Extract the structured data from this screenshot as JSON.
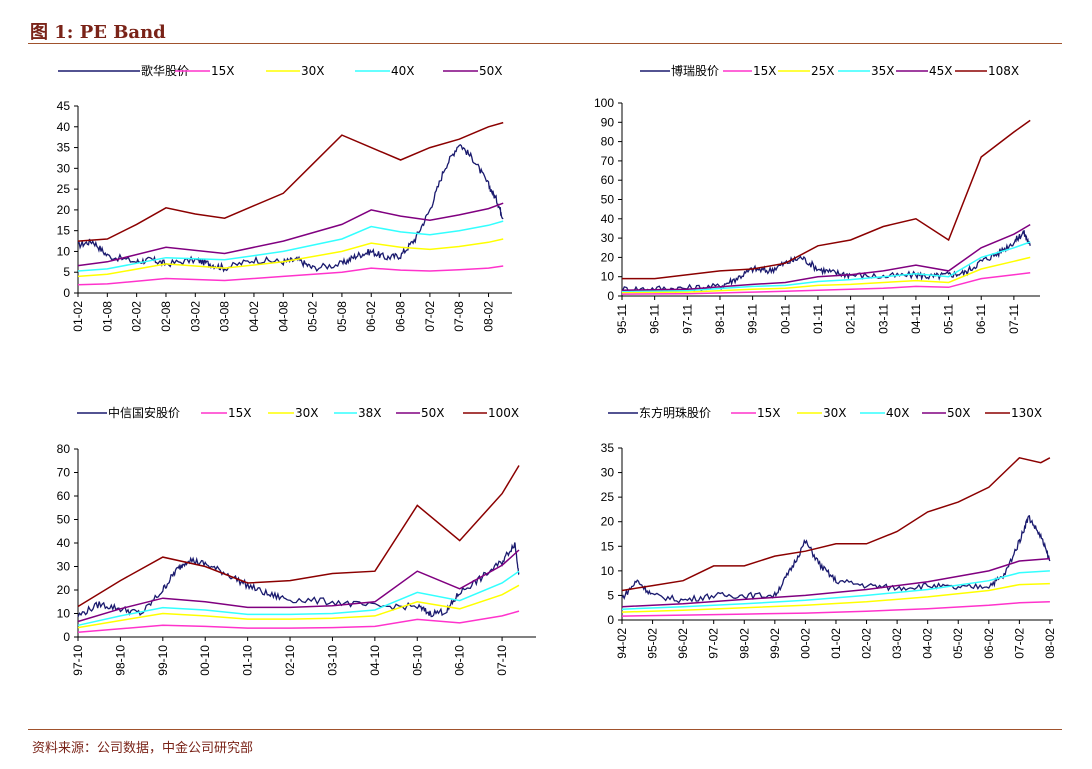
{
  "figure": {
    "title": "图 1:  PE Band",
    "source": "资料来源：公司数据，中金公司研究部"
  },
  "chart_data": [
    {
      "type": "line",
      "legend": "top",
      "ylim": [
        0,
        45
      ],
      "yticks": [
        0,
        5,
        10,
        15,
        20,
        25,
        30,
        35,
        40,
        45
      ],
      "xticks": [
        "01-02",
        "01-08",
        "02-02",
        "02-08",
        "03-02",
        "03-08",
        "04-02",
        "04-08",
        "05-02",
        "05-08",
        "06-02",
        "06-08",
        "07-02",
        "07-08",
        "08-02"
      ],
      "xrange": [
        0,
        14.8
      ],
      "series": [
        {
          "name": "歌华股价",
          "color": "#1a1a6e",
          "noisy": true,
          "x": [
            0,
            0.5,
            1,
            2,
            2.5,
            3,
            4,
            4.5,
            5,
            6,
            7,
            7.5,
            8,
            9,
            9.5,
            10,
            10.5,
            11,
            11.5,
            12,
            12.5,
            13,
            13.5,
            14,
            14.3,
            14.5
          ],
          "y": [
            11.5,
            12.5,
            9,
            7.5,
            8,
            7,
            8,
            7,
            6,
            8,
            7.5,
            8,
            6,
            7,
            9,
            10,
            8.5,
            9,
            13,
            20,
            30,
            36,
            32,
            26,
            22,
            18
          ]
        },
        {
          "name": "15X",
          "color": "#ff33cc",
          "x": [
            0,
            1,
            3,
            5,
            7,
            9,
            10,
            11,
            12,
            13,
            14,
            14.5
          ],
          "y": [
            2,
            2.2,
            3.5,
            3,
            4,
            5,
            6,
            5.5,
            5.3,
            5.6,
            6,
            6.5
          ]
        },
        {
          "name": "30X",
          "color": "#ffff00",
          "x": [
            0,
            1,
            3,
            5,
            7,
            9,
            10,
            11,
            12,
            13,
            14,
            14.5
          ],
          "y": [
            4,
            4.5,
            7,
            6,
            7.5,
            10,
            12,
            11,
            10.5,
            11.2,
            12.2,
            13
          ]
        },
        {
          "name": "40X",
          "color": "#33ffff",
          "x": [
            0,
            1,
            3,
            5,
            7,
            9,
            10,
            11,
            12,
            13,
            14,
            14.5
          ],
          "y": [
            5.3,
            5.8,
            8.5,
            8,
            10,
            13,
            16,
            14.7,
            14,
            15,
            16.3,
            17.3
          ]
        },
        {
          "name": "50X",
          "color": "#800080",
          "x": [
            0,
            1,
            3,
            5,
            7,
            9,
            10,
            11,
            12,
            13,
            14,
            14.5
          ],
          "y": [
            6.6,
            7.5,
            11,
            9.5,
            12.5,
            16.5,
            20,
            18.5,
            17.5,
            18.8,
            20.3,
            21.6
          ]
        },
        {
          "x": [
            0,
            1,
            2,
            3,
            4,
            5,
            6,
            7,
            8,
            9,
            10,
            11,
            12,
            13,
            14,
            14.5
          ],
          "y": [
            12.5,
            13,
            16.5,
            20.5,
            19,
            18,
            21,
            24,
            31,
            38,
            35,
            32,
            35,
            37,
            40,
            41
          ],
          "color": "#8b0000"
        }
      ]
    },
    {
      "type": "line",
      "legend": "top",
      "ylim": [
        0,
        100
      ],
      "yticks": [
        0,
        10,
        20,
        30,
        40,
        50,
        60,
        70,
        80,
        90,
        100
      ],
      "xticks": [
        "95-11",
        "96-11",
        "97-11",
        "98-11",
        "99-11",
        "00-11",
        "01-11",
        "02-11",
        "03-11",
        "04-11",
        "05-11",
        "06-11",
        "07-11"
      ],
      "xrange": [
        0,
        12.8
      ],
      "series": [
        {
          "name": "博瑞股价",
          "color": "#1a1a6e",
          "noisy": true,
          "x": [
            0,
            1,
            2,
            3,
            3.5,
            4,
            4.5,
            5,
            5.5,
            6,
            6.5,
            7,
            8,
            9,
            9.5,
            10,
            10.5,
            11,
            11.5,
            12,
            12.3,
            12.5
          ],
          "y": [
            3.5,
            3.8,
            4,
            5,
            9,
            14,
            13,
            17,
            20,
            14,
            12,
            11,
            10,
            11,
            10,
            11,
            12,
            18,
            22,
            28,
            33,
            26
          ]
        },
        {
          "name": "15X",
          "color": "#ff33cc",
          "x": [
            0,
            2,
            4,
            5,
            6,
            7,
            8,
            9,
            10,
            11,
            12,
            12.5
          ],
          "y": [
            1,
            1.2,
            2,
            2.5,
            3,
            3.5,
            4,
            5,
            4.5,
            9,
            11,
            12
          ]
        },
        {
          "name": "25X",
          "color": "#ffff00",
          "x": [
            0,
            2,
            4,
            5,
            6,
            7,
            8,
            9,
            10,
            11,
            12,
            12.5
          ],
          "y": [
            1.8,
            2,
            3.5,
            4,
            5.5,
            6,
            7,
            8,
            7,
            14,
            18,
            20
          ]
        },
        {
          "name": "35X",
          "color": "#33ffff",
          "x": [
            0,
            2,
            4,
            5,
            6,
            7,
            8,
            9,
            10,
            11,
            12,
            12.5
          ],
          "y": [
            2.5,
            2.8,
            5,
            5.5,
            7.5,
            8.5,
            10,
            11.5,
            10,
            20,
            25,
            28
          ]
        },
        {
          "name": "45X",
          "color": "#800080",
          "x": [
            0,
            2,
            4,
            5,
            6,
            7,
            8,
            9,
            10,
            11,
            12,
            12.5
          ],
          "y": [
            3,
            3.5,
            6,
            7,
            10,
            11,
            13,
            16,
            13,
            25,
            32,
            37
          ]
        },
        {
          "name": "108X",
          "color": "#8b0000",
          "x": [
            0,
            1,
            2,
            3,
            4,
            5,
            6,
            7,
            8,
            9,
            10,
            11,
            12,
            12.5
          ],
          "y": [
            9,
            9,
            11,
            13,
            14,
            17,
            26,
            29,
            36,
            40,
            29,
            72,
            85,
            91
          ]
        }
      ]
    },
    {
      "type": "line",
      "legend": "top",
      "ylim": [
        0,
        80
      ],
      "yticks": [
        0,
        10,
        20,
        30,
        40,
        50,
        60,
        70,
        80
      ],
      "xticks": [
        "97-10",
        "98-10",
        "99-10",
        "00-10",
        "01-10",
        "02-10",
        "03-10",
        "04-10",
        "05-10",
        "06-10",
        "07-10"
      ],
      "xrange": [
        0,
        10.8
      ],
      "series": [
        {
          "name": "中信国安股价",
          "color": "#1a1a6e",
          "noisy": true,
          "x": [
            0,
            0.5,
            1,
            1.5,
            2,
            2.3,
            2.6,
            3,
            3.5,
            4,
            4.5,
            5,
            6,
            7,
            8,
            8.3,
            8.7,
            9,
            9.5,
            10,
            10.3,
            10.4
          ],
          "y": [
            9,
            14,
            12,
            10,
            20,
            28,
            33,
            31,
            27,
            22,
            18,
            16,
            15,
            13,
            13,
            10,
            11,
            19,
            25,
            32,
            40,
            27
          ]
        },
        {
          "name": "15X",
          "color": "#ff33cc",
          "x": [
            0,
            1,
            2,
            3,
            4,
            5,
            6,
            7,
            8,
            9,
            10,
            10.4
          ],
          "y": [
            2,
            3.5,
            5,
            4.5,
            3.8,
            3.8,
            4,
            4.5,
            7.5,
            6,
            9,
            11
          ]
        },
        {
          "name": "30X",
          "color": "#ffff00",
          "x": [
            0,
            1,
            2,
            3,
            4,
            5,
            6,
            7,
            8,
            9,
            10,
            10.4
          ],
          "y": [
            4,
            7,
            10,
            9,
            7.6,
            7.6,
            8,
            9,
            15,
            12,
            18,
            22
          ]
        },
        {
          "name": "38X",
          "color": "#33ffff",
          "x": [
            0,
            1,
            2,
            3,
            4,
            5,
            6,
            7,
            8,
            9,
            10,
            10.4
          ],
          "y": [
            5,
            9,
            12.5,
            11.5,
            9.6,
            9.6,
            10,
            11.5,
            19,
            15.5,
            23,
            28
          ]
        },
        {
          "name": "50X",
          "color": "#800080",
          "x": [
            0,
            1,
            2,
            3,
            4,
            5,
            6,
            7,
            8,
            9,
            10,
            10.4
          ],
          "y": [
            6.6,
            12,
            16.5,
            15,
            12.6,
            12.6,
            13.3,
            15,
            28,
            20.5,
            30.5,
            37
          ]
        },
        {
          "name": "100X",
          "color": "#8b0000",
          "x": [
            0,
            1,
            2,
            3,
            4,
            5,
            6,
            7,
            8,
            9,
            10,
            10.4
          ],
          "y": [
            13,
            24,
            34,
            30,
            23,
            24,
            27,
            28,
            56,
            41,
            61,
            73
          ]
        }
      ]
    },
    {
      "type": "line",
      "legend": "top",
      "ylim": [
        0,
        35
      ],
      "yticks": [
        0,
        5,
        10,
        15,
        20,
        25,
        30,
        35
      ],
      "xticks": [
        "94-02",
        "95-02",
        "96-02",
        "97-02",
        "98-02",
        "99-02",
        "00-02",
        "01-02",
        "02-02",
        "03-02",
        "04-02",
        "05-02",
        "06-02",
        "07-02",
        "08-02"
      ],
      "xrange": [
        0,
        14.1
      ],
      "series": [
        {
          "name": "东方明珠股价",
          "color": "#1a1a6e",
          "noisy": true,
          "x": [
            0,
            0.5,
            1,
            2,
            3,
            4,
            5,
            5.5,
            6,
            6.5,
            7,
            8,
            9,
            10,
            11,
            12,
            12.5,
            13,
            13.3,
            13.7,
            14
          ],
          "y": [
            4.5,
            8,
            5,
            4,
            5,
            5,
            5,
            10,
            16,
            11,
            8,
            7,
            6.5,
            7,
            6.5,
            7,
            9,
            16,
            21,
            17,
            12
          ]
        },
        {
          "name": "15X",
          "color": "#ff33cc",
          "x": [
            0,
            2,
            4,
            6,
            8,
            10,
            12,
            13,
            14
          ],
          "y": [
            0.8,
            1,
            1.2,
            1.4,
            1.8,
            2.3,
            3,
            3.5,
            3.7
          ]
        },
        {
          "name": "30X",
          "color": "#ffff00",
          "x": [
            0,
            2,
            4,
            6,
            8,
            10,
            12,
            13,
            14
          ],
          "y": [
            1.6,
            2,
            2.5,
            3,
            3.7,
            4.7,
            6,
            7.2,
            7.4
          ]
        },
        {
          "name": "40X",
          "color": "#33ffff",
          "x": [
            0,
            2,
            4,
            6,
            8,
            10,
            12,
            13,
            14
          ],
          "y": [
            2.2,
            2.7,
            3.3,
            4,
            5,
            6.2,
            8,
            9.6,
            10
          ]
        },
        {
          "name": "50X",
          "color": "#800080",
          "x": [
            0,
            2,
            4,
            6,
            8,
            10,
            12,
            13,
            14
          ],
          "y": [
            2.7,
            3.3,
            4.2,
            5,
            6.2,
            7.8,
            10,
            12,
            12.5
          ]
        },
        {
          "name": "130X",
          "color": "#8b0000",
          "x": [
            0,
            1,
            2,
            3,
            4,
            5,
            6,
            7,
            8,
            9,
            10,
            11,
            12,
            13,
            13.7,
            14
          ],
          "y": [
            6,
            7,
            8,
            11,
            11,
            13,
            14,
            15.5,
            15.5,
            18,
            22,
            24,
            27,
            33,
            32,
            33
          ]
        }
      ]
    }
  ]
}
